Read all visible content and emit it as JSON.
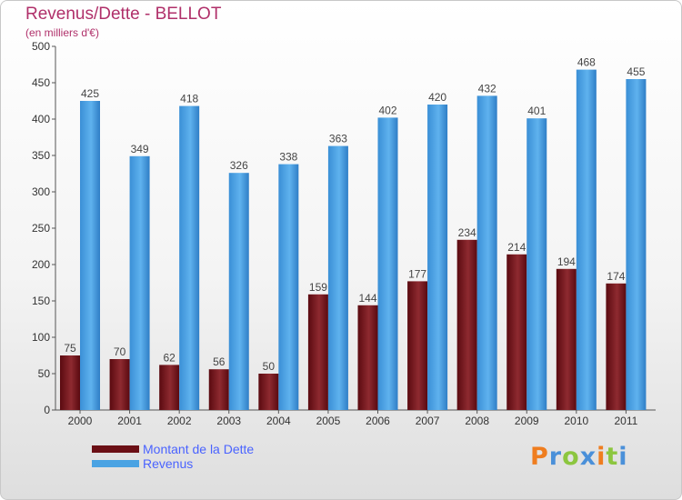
{
  "header": {
    "title": "Revenus/Dette - BELLOT",
    "subtitle": "(en milliers d'€)"
  },
  "colors": {
    "dette": "#7a1a1f",
    "revenus": "#4aa3e3",
    "title": "#b0306a",
    "legend_text": "#4a63ff"
  },
  "legend": {
    "items": [
      {
        "label": "Montant de la Dette",
        "color": "#6b0f15"
      },
      {
        "label": "Revenus",
        "color": "#4aa3e3"
      }
    ]
  },
  "brand": {
    "letters": [
      "P",
      "r",
      "o",
      "x",
      "i",
      "t",
      "i"
    ],
    "colors": [
      "#ef7d1f",
      "#4a90d9",
      "#8cc63f",
      "#4a90d9",
      "#ef7d1f",
      "#8cc63f",
      "#4a90d9"
    ]
  },
  "chart_data": {
    "type": "bar",
    "title": "Revenus/Dette - BELLOT",
    "subtitle": "(en milliers d'€)",
    "categories": [
      "2000",
      "2001",
      "2002",
      "2003",
      "2004",
      "2005",
      "2006",
      "2007",
      "2008",
      "2009",
      "2010",
      "2011"
    ],
    "series": [
      {
        "name": "Montant de la Dette",
        "values": [
          75,
          70,
          62,
          56,
          50,
          159,
          144,
          177,
          234,
          214,
          194,
          174
        ]
      },
      {
        "name": "Revenus",
        "values": [
          425,
          349,
          418,
          326,
          338,
          363,
          402,
          420,
          432,
          401,
          468,
          455
        ]
      }
    ],
    "yticks": [
      "0",
      "50",
      "100",
      "150",
      "200",
      "250",
      "300",
      "350",
      "400",
      "450",
      "500"
    ],
    "ylim": [
      0,
      500
    ],
    "grid": false,
    "legend_position": "bottom-left"
  }
}
